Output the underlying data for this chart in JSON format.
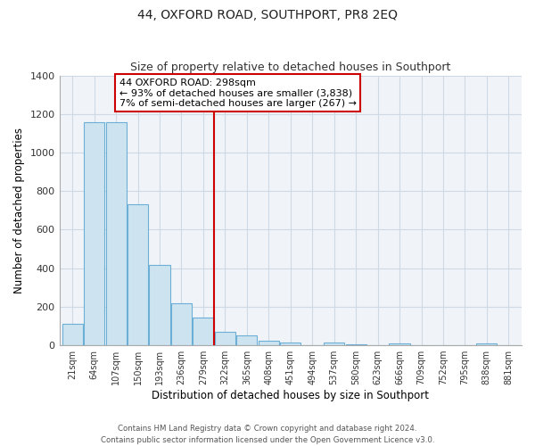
{
  "title": "44, OXFORD ROAD, SOUTHPORT, PR8 2EQ",
  "subtitle": "Size of property relative to detached houses in Southport",
  "xlabel": "Distribution of detached houses by size in Southport",
  "ylabel": "Number of detached properties",
  "bar_labels": [
    "21sqm",
    "64sqm",
    "107sqm",
    "150sqm",
    "193sqm",
    "236sqm",
    "279sqm",
    "322sqm",
    "365sqm",
    "408sqm",
    "451sqm",
    "494sqm",
    "537sqm",
    "580sqm",
    "623sqm",
    "666sqm",
    "709sqm",
    "752sqm",
    "795sqm",
    "838sqm",
    "881sqm"
  ],
  "bar_values": [
    110,
    1155,
    1155,
    730,
    415,
    220,
    145,
    70,
    50,
    22,
    15,
    0,
    15,
    5,
    0,
    10,
    0,
    0,
    0,
    8,
    0
  ],
  "bar_fill_color": "#cde4f0",
  "bar_edge_color": "#6baed6",
  "property_line_index": 6.5,
  "property_line_color": "#cc0000",
  "annotation_title": "44 OXFORD ROAD: 298sqm",
  "annotation_line1": "← 93% of detached houses are smaller (3,838)",
  "annotation_line2": "7% of semi-detached houses are larger (267) →",
  "annotation_box_color": "#ffffff",
  "annotation_box_edge": "#cc0000",
  "footer1": "Contains HM Land Registry data © Crown copyright and database right 2024.",
  "footer2": "Contains public sector information licensed under the Open Government Licence v3.0.",
  "ylim": [
    0,
    1400
  ],
  "yticks": [
    0,
    200,
    400,
    600,
    800,
    1000,
    1200,
    1400
  ],
  "background_color": "#ffffff",
  "plot_bg_color": "#f0f4f8",
  "grid_color": "#cdd9e5"
}
